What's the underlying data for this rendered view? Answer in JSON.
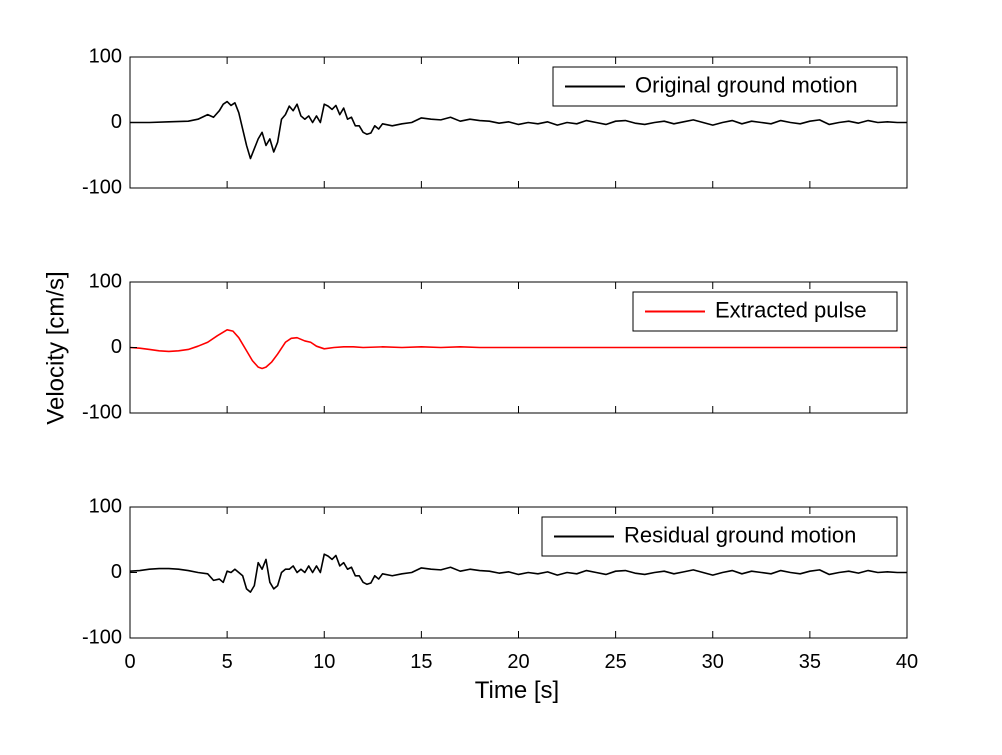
{
  "chart_data": {
    "type": "line",
    "shared_x": {
      "xlabel": "Time [s]",
      "xlim": [
        0,
        40
      ],
      "xticks": [
        0,
        5,
        10,
        15,
        20,
        25,
        30,
        35,
        40
      ],
      "xtick_labels": [
        "0",
        "5",
        "10",
        "15",
        "20",
        "25",
        "30",
        "35",
        "40"
      ]
    },
    "shared_ylabel": "Velocity [cm/s]",
    "grid": false,
    "legend_placement": "top-right",
    "panels": [
      {
        "ylim": [
          -100,
          100
        ],
        "yticks": [
          -100,
          0,
          100
        ],
        "ytick_labels": [
          "-100",
          "0",
          "100"
        ],
        "series": [
          {
            "name": "Original ground motion",
            "color": "#000000",
            "x": [
              0,
              1,
              2,
              3,
              3.5,
              4,
              4.3,
              4.6,
              4.8,
              5,
              5.2,
              5.4,
              5.6,
              5.8,
              6,
              6.2,
              6.4,
              6.6,
              6.8,
              7,
              7.2,
              7.4,
              7.6,
              7.8,
              8,
              8.2,
              8.4,
              8.6,
              8.8,
              9,
              9.2,
              9.4,
              9.6,
              9.8,
              10,
              10.2,
              10.4,
              10.6,
              10.8,
              11,
              11.2,
              11.4,
              11.6,
              11.8,
              12,
              12.2,
              12.4,
              12.6,
              12.8,
              13,
              13.5,
              14,
              14.5,
              15,
              15.5,
              16,
              16.5,
              17,
              17.5,
              18,
              18.5,
              19,
              19.5,
              20,
              20.5,
              21,
              21.5,
              22,
              22.5,
              23,
              23.5,
              24,
              24.5,
              25,
              25.5,
              26,
              26.5,
              27,
              27.5,
              28,
              28.5,
              29,
              29.5,
              30,
              30.5,
              31,
              31.5,
              32,
              32.5,
              33,
              33.5,
              34,
              34.5,
              35,
              35.5,
              36,
              36.5,
              37,
              37.5,
              38,
              38.5,
              39,
              39.5,
              40
            ],
            "y": [
              0,
              0,
              1,
              2,
              5,
              12,
              8,
              18,
              28,
              32,
              26,
              30,
              15,
              -10,
              -35,
              -55,
              -40,
              -25,
              -15,
              -35,
              -25,
              -45,
              -30,
              5,
              12,
              25,
              18,
              28,
              10,
              5,
              10,
              0,
              10,
              0,
              28,
              25,
              20,
              26,
              12,
              22,
              5,
              8,
              -5,
              -5,
              -15,
              -18,
              -16,
              -5,
              -10,
              -2,
              -5,
              -2,
              0,
              7,
              5,
              4,
              8,
              2,
              5,
              3,
              2,
              -1,
              1,
              -3,
              0,
              -2,
              1,
              -4,
              0,
              -2,
              3,
              0,
              -3,
              2,
              3,
              -1,
              -3,
              0,
              2,
              -2,
              1,
              4,
              0,
              -4,
              0,
              3,
              -2,
              2,
              0,
              -2,
              3,
              0,
              -2,
              2,
              4,
              -3,
              0,
              2,
              -1,
              3,
              0,
              1,
              0,
              0
            ]
          }
        ]
      },
      {
        "ylim": [
          -100,
          100
        ],
        "yticks": [
          -100,
          0,
          100
        ],
        "ytick_labels": [
          "-100",
          "0",
          "100"
        ],
        "series": [
          {
            "name": "Extracted pulse",
            "color": "#ff0000",
            "x": [
              0,
              0.5,
              1,
              1.5,
              2,
              2.5,
              3,
              3.5,
              4,
              4.5,
              5,
              5.3,
              5.6,
              6,
              6.3,
              6.6,
              6.8,
              7,
              7.3,
              7.6,
              8,
              8.3,
              8.6,
              9,
              9.3,
              9.6,
              10,
              10.5,
              11,
              11.5,
              12,
              13,
              14,
              15,
              16,
              17,
              18,
              20,
              25,
              30,
              35,
              40
            ],
            "y": [
              0,
              -1,
              -3,
              -5,
              -6,
              -5,
              -3,
              2,
              8,
              18,
              27,
              25,
              15,
              -5,
              -20,
              -30,
              -32,
              -30,
              -22,
              -10,
              8,
              14,
              15,
              10,
              8,
              2,
              -2,
              0,
              1,
              1,
              0,
              1,
              0,
              1,
              0,
              1,
              0,
              0,
              0,
              0,
              0,
              0
            ]
          }
        ]
      },
      {
        "ylim": [
          -100,
          100
        ],
        "yticks": [
          -100,
          0,
          100
        ],
        "ytick_labels": [
          "-100",
          "0",
          "100"
        ],
        "series": [
          {
            "name": "Residual ground motion",
            "color": "#000000",
            "x": [
              0,
              0.5,
              1,
              1.5,
              2,
              2.5,
              3,
              3.5,
              4,
              4.3,
              4.6,
              4.8,
              5,
              5.2,
              5.4,
              5.6,
              5.8,
              6,
              6.2,
              6.4,
              6.6,
              6.8,
              7,
              7.2,
              7.4,
              7.6,
              7.8,
              8,
              8.2,
              8.4,
              8.6,
              8.8,
              9,
              9.2,
              9.4,
              9.6,
              9.8,
              10,
              10.2,
              10.4,
              10.6,
              10.8,
              11,
              11.2,
              11.4,
              11.6,
              11.8,
              12,
              12.2,
              12.4,
              12.6,
              12.8,
              13,
              13.5,
              14,
              14.5,
              15,
              15.5,
              16,
              16.5,
              17,
              17.5,
              18,
              18.5,
              19,
              19.5,
              20,
              20.5,
              21,
              21.5,
              22,
              22.5,
              23,
              23.5,
              24,
              24.5,
              25,
              25.5,
              26,
              26.5,
              27,
              27.5,
              28,
              28.5,
              29,
              29.5,
              30,
              30.5,
              31,
              31.5,
              32,
              32.5,
              33,
              33.5,
              34,
              34.5,
              35,
              35.5,
              36,
              36.5,
              37,
              37.5,
              38,
              38.5,
              39,
              39.5,
              40
            ],
            "y": [
              2,
              3,
              5,
              6,
              6,
              5,
              3,
              0,
              -2,
              -12,
              -10,
              -15,
              2,
              0,
              5,
              0,
              -5,
              -25,
              -30,
              -20,
              15,
              5,
              20,
              -15,
              -25,
              -20,
              0,
              5,
              5,
              10,
              0,
              5,
              0,
              10,
              0,
              10,
              0,
              28,
              25,
              20,
              26,
              10,
              15,
              5,
              8,
              -5,
              -5,
              -15,
              -18,
              -16,
              -5,
              -10,
              -2,
              -5,
              -2,
              0,
              7,
              5,
              4,
              8,
              2,
              5,
              3,
              2,
              -1,
              1,
              -3,
              0,
              -2,
              1,
              -4,
              0,
              -2,
              3,
              0,
              -3,
              2,
              3,
              -1,
              -3,
              0,
              2,
              -2,
              1,
              4,
              0,
              -4,
              0,
              3,
              -2,
              2,
              0,
              -2,
              3,
              0,
              -2,
              2,
              4,
              -3,
              0,
              2,
              -1,
              3,
              0,
              1,
              0,
              0
            ]
          }
        ]
      }
    ]
  }
}
